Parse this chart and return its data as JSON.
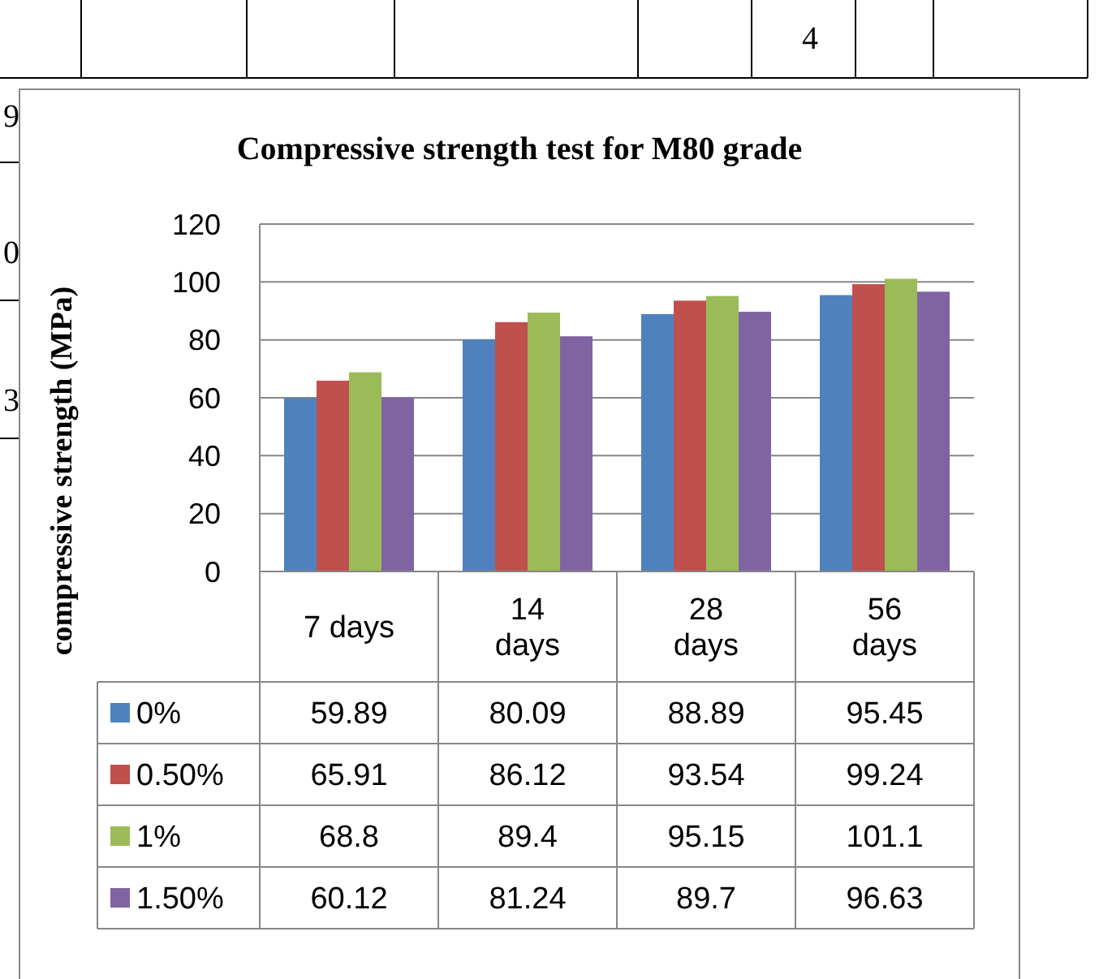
{
  "chart_data": {
    "type": "bar",
    "title": "Compressive strength test for M80 grade",
    "ylabel": "compressive strength (MPa)",
    "categories": [
      "7 days",
      "14 days",
      "28 days",
      "56 days"
    ],
    "series": [
      {
        "name": "0%",
        "color": "#4f81bd",
        "values": [
          59.89,
          80.09,
          88.89,
          95.45
        ]
      },
      {
        "name": "0.50%",
        "color": "#c0504d",
        "values": [
          65.91,
          86.12,
          93.54,
          99.24
        ]
      },
      {
        "name": "1%",
        "color": "#9bbb59",
        "values": [
          68.8,
          89.4,
          95.15,
          101.1
        ]
      },
      {
        "name": "1.50%",
        "color": "#8064a2",
        "values": [
          60.12,
          81.24,
          89.7,
          96.63
        ]
      }
    ],
    "ylim": [
      0,
      120
    ],
    "yticks": [
      0,
      20,
      40,
      60,
      80,
      100,
      120
    ],
    "grid": "y",
    "data_labels": true,
    "legend": "bottom",
    "annotations": [
      "4",
      "9",
      "0",
      "3"
    ]
  }
}
